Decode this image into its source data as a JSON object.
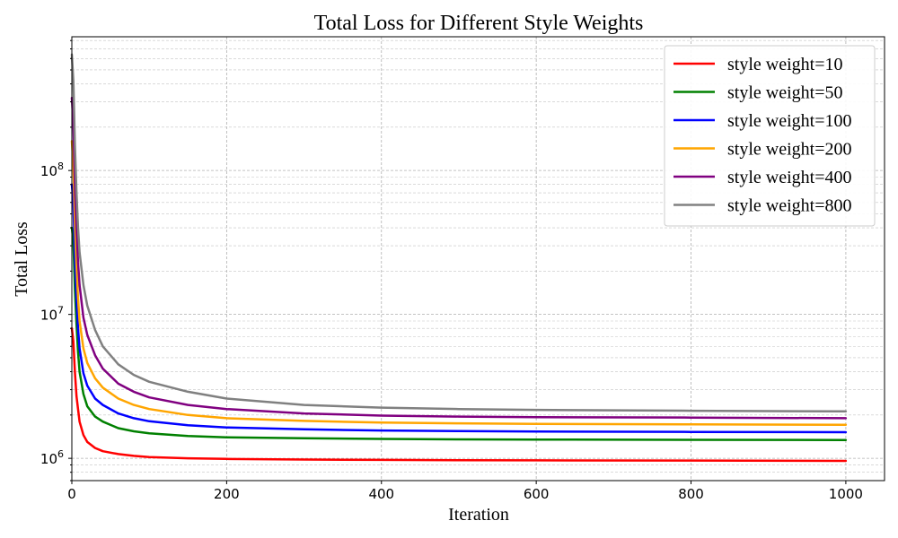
{
  "chart_data": {
    "type": "line",
    "title": "Total Loss for Different Style Weights",
    "xlabel": "Iteration",
    "ylabel": "Total Loss",
    "yscale": "log",
    "xlim": [
      0,
      1050
    ],
    "ylim": [
      700000,
      850000000
    ],
    "xticks": [
      0,
      200,
      400,
      600,
      800,
      1000
    ],
    "xtick_labels": [
      "0",
      "200",
      "400",
      "600",
      "800",
      "1000"
    ],
    "yticks": [
      1000000,
      10000000,
      100000000
    ],
    "ytick_labels": [
      {
        "base": "10",
        "exp": "6"
      },
      {
        "base": "10",
        "exp": "7"
      },
      {
        "base": "10",
        "exp": "8"
      }
    ],
    "grid": true,
    "legend_position": "top-right",
    "series": [
      {
        "name": "style weight=10",
        "color": "#ff0000",
        "x": [
          0,
          2,
          4,
          6,
          8,
          10,
          15,
          20,
          30,
          40,
          60,
          80,
          100,
          150,
          200,
          300,
          400,
          500,
          600,
          800,
          1000
        ],
        "y": [
          8000000,
          6500000,
          4000000,
          2700000,
          2200000,
          1800000,
          1450000,
          1300000,
          1180000,
          1120000,
          1070000,
          1040000,
          1020000,
          1000000,
          990000,
          980000,
          975000,
          970000,
          968000,
          965000,
          960000
        ]
      },
      {
        "name": "style weight=50",
        "color": "#008000",
        "x": [
          0,
          2,
          4,
          6,
          8,
          10,
          15,
          20,
          30,
          40,
          60,
          80,
          100,
          150,
          200,
          300,
          400,
          500,
          600,
          800,
          1000
        ],
        "y": [
          40000000,
          32000000,
          15000000,
          8500000,
          5500000,
          4000000,
          2800000,
          2300000,
          1950000,
          1800000,
          1620000,
          1540000,
          1490000,
          1430000,
          1400000,
          1380000,
          1365000,
          1355000,
          1350000,
          1345000,
          1340000
        ]
      },
      {
        "name": "style weight=100",
        "color": "#0000ff",
        "x": [
          0,
          2,
          4,
          6,
          8,
          10,
          15,
          20,
          30,
          40,
          60,
          80,
          100,
          150,
          200,
          300,
          400,
          500,
          600,
          800,
          1000
        ],
        "y": [
          80000000,
          60000000,
          25000000,
          13000000,
          8000000,
          5800000,
          3900000,
          3200000,
          2600000,
          2350000,
          2050000,
          1900000,
          1810000,
          1700000,
          1640000,
          1590000,
          1560000,
          1545000,
          1535000,
          1525000,
          1520000
        ]
      },
      {
        "name": "style weight=200",
        "color": "#ffa500",
        "x": [
          0,
          2,
          4,
          6,
          8,
          10,
          15,
          20,
          30,
          40,
          60,
          80,
          100,
          150,
          200,
          300,
          400,
          500,
          600,
          800,
          1000
        ],
        "y": [
          160000000,
          110000000,
          45000000,
          22000000,
          13000000,
          9000000,
          5800000,
          4600000,
          3600000,
          3100000,
          2600000,
          2350000,
          2200000,
          2000000,
          1900000,
          1820000,
          1770000,
          1750000,
          1735000,
          1720000,
          1710000
        ]
      },
      {
        "name": "style weight=400",
        "color": "#800080",
        "x": [
          0,
          2,
          4,
          6,
          8,
          10,
          15,
          20,
          30,
          40,
          60,
          80,
          100,
          150,
          200,
          300,
          400,
          500,
          600,
          800,
          1000
        ],
        "y": [
          320000000,
          210000000,
          80000000,
          40000000,
          23000000,
          16000000,
          9500000,
          7200000,
          5200000,
          4200000,
          3300000,
          2900000,
          2650000,
          2350000,
          2200000,
          2050000,
          1980000,
          1950000,
          1930000,
          1920000,
          1900000
        ]
      },
      {
        "name": "style weight=800",
        "color": "#808080",
        "x": [
          0,
          2,
          4,
          6,
          8,
          10,
          15,
          20,
          30,
          40,
          60,
          80,
          100,
          150,
          200,
          300,
          400,
          500,
          600,
          800,
          1000
        ],
        "y": [
          640000000,
          420000000,
          150000000,
          70000000,
          40000000,
          27000000,
          16000000,
          11500000,
          7800000,
          6000000,
          4500000,
          3800000,
          3400000,
          2900000,
          2600000,
          2350000,
          2250000,
          2200000,
          2170000,
          2140000,
          2120000
        ]
      }
    ]
  }
}
